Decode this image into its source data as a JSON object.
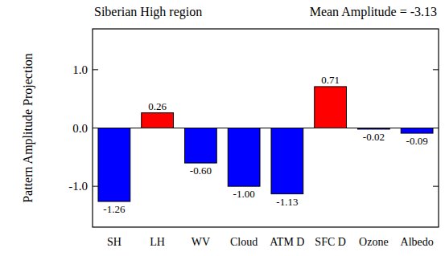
{
  "chart_data": {
    "type": "bar",
    "title": "Siberian High region",
    "annotation": "Mean Amplitude = -3.13",
    "y_label": "Pattern Amplitude Projection",
    "categories": [
      "SH",
      "LH",
      "WV",
      "Cloud",
      "ATM D",
      "SFC D",
      "Ozone",
      "Albedo"
    ],
    "values": [
      -1.26,
      0.26,
      -0.6,
      -1.0,
      -1.13,
      0.71,
      -0.02,
      -0.09
    ],
    "value_labels": [
      "-1.26",
      "0.26",
      "-0.60",
      "-1.00",
      "-1.13",
      "0.71",
      "-0.02",
      "-0.09"
    ],
    "colors": [
      "#0000ff",
      "#ff0000",
      "#0000ff",
      "#0000ff",
      "#0000ff",
      "#ff0000",
      "#0000ff",
      "#0000ff"
    ],
    "ylim": [
      -1.7,
      1.7
    ],
    "yticks": [
      {
        "value": -1,
        "label": "-1.0"
      },
      {
        "value": 0,
        "label": "0.0"
      },
      {
        "value": 1,
        "label": "1.0"
      }
    ],
    "data_labels": true,
    "grid": false
  }
}
